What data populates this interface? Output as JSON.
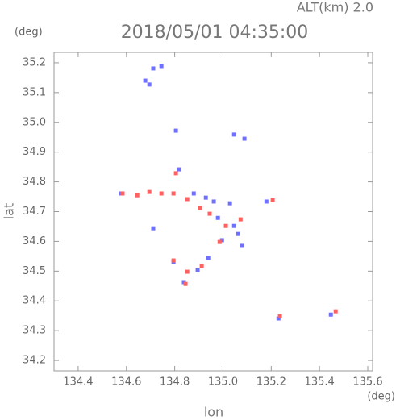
{
  "chart_data": {
    "type": "scatter",
    "title": "2018/05/01 04:35:00",
    "subtitle": "ALT(km) 2.0",
    "y_unit": "(deg)",
    "x_unit": "(deg)",
    "y_label": "lat",
    "x_label": "lon",
    "xlim": [
      134.3,
      135.62
    ],
    "ylim": [
      34.165,
      35.235
    ],
    "xticks": [
      134.4,
      134.6,
      134.8,
      {
        "value": 135.0,
        "label": "135.0"
      },
      135.2,
      135.4,
      135.6
    ],
    "yticks": [
      34.2,
      34.3,
      34.4,
      34.5,
      34.6,
      34.7,
      34.8,
      34.9,
      {
        "value": 35.0,
        "label": "35.0"
      },
      35.1,
      35.2
    ],
    "series": [
      {
        "color": "#7070ff",
        "x": [
          134.678,
          134.711,
          134.745,
          134.695,
          134.805,
          135.046,
          135.089,
          134.818,
          134.879,
          134.929,
          134.962,
          135.029,
          134.979,
          135.046,
          135.063,
          134.996,
          135.079,
          134.939,
          134.895,
          134.838,
          134.795,
          135.23,
          135.447,
          134.578,
          134.711,
          135.18
        ],
        "y": [
          35.14,
          35.181,
          35.189,
          35.127,
          34.972,
          34.959,
          34.945,
          34.842,
          34.761,
          34.747,
          34.734,
          34.728,
          34.679,
          34.652,
          34.625,
          34.604,
          34.585,
          34.544,
          34.503,
          34.463,
          34.53,
          34.341,
          34.354,
          34.761,
          34.644,
          34.734
        ]
      },
      {
        "color": "#ff6060",
        "x": [
          134.584,
          134.645,
          134.695,
          134.805,
          134.795,
          134.852,
          134.905,
          134.945,
          135.012,
          135.073,
          134.986,
          134.912,
          134.852,
          134.845,
          134.795,
          135.206,
          135.467,
          135.236,
          134.745
        ],
        "y": [
          34.761,
          34.755,
          34.766,
          34.829,
          34.761,
          34.742,
          34.712,
          34.693,
          34.652,
          34.674,
          34.598,
          34.517,
          34.498,
          34.457,
          34.536,
          34.739,
          34.365,
          34.349,
          34.761
        ]
      }
    ]
  }
}
